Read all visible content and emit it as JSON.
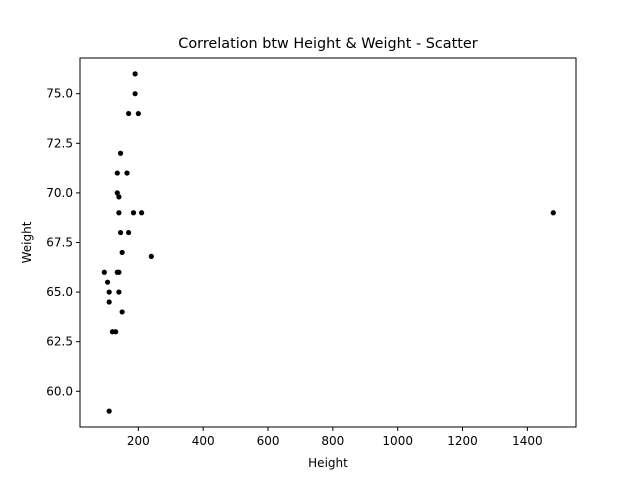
{
  "chart_data": {
    "type": "scatter",
    "title": "Correlation btw Height & Weight - Scatter",
    "xlabel": "Height",
    "ylabel": "Weight",
    "xlim": [
      20,
      1550
    ],
    "ylim": [
      58.2,
      76.8
    ],
    "xticks": [
      200,
      400,
      600,
      800,
      1000,
      1200,
      1400
    ],
    "xtick_labels": [
      "200",
      "400",
      "600",
      "800",
      "1000",
      "1200",
      "1400"
    ],
    "yticks": [
      60.0,
      62.5,
      65.0,
      67.5,
      70.0,
      72.5,
      75.0
    ],
    "ytick_labels": [
      "60.0",
      "62.5",
      "65.0",
      "67.5",
      "70.0",
      "72.5",
      "75.0"
    ],
    "grid": false,
    "marker_color": "#000000",
    "series": [
      {
        "points": [
          [
            190,
            76
          ],
          [
            190,
            75
          ],
          [
            170,
            74
          ],
          [
            200,
            74
          ],
          [
            145,
            72
          ],
          [
            135,
            71
          ],
          [
            165,
            71
          ],
          [
            135,
            70
          ],
          [
            140,
            69.8
          ],
          [
            140,
            69
          ],
          [
            185,
            69
          ],
          [
            210,
            69
          ],
          [
            1480,
            69
          ],
          [
            145,
            68
          ],
          [
            170,
            68
          ],
          [
            150,
            67
          ],
          [
            240,
            66.8
          ],
          [
            95,
            66
          ],
          [
            135,
            66
          ],
          [
            140,
            66
          ],
          [
            105,
            65.5
          ],
          [
            110,
            65
          ],
          [
            140,
            65
          ],
          [
            110,
            64.5
          ],
          [
            150,
            64
          ],
          [
            120,
            63
          ],
          [
            130,
            63
          ],
          [
            110,
            59
          ]
        ]
      }
    ]
  }
}
